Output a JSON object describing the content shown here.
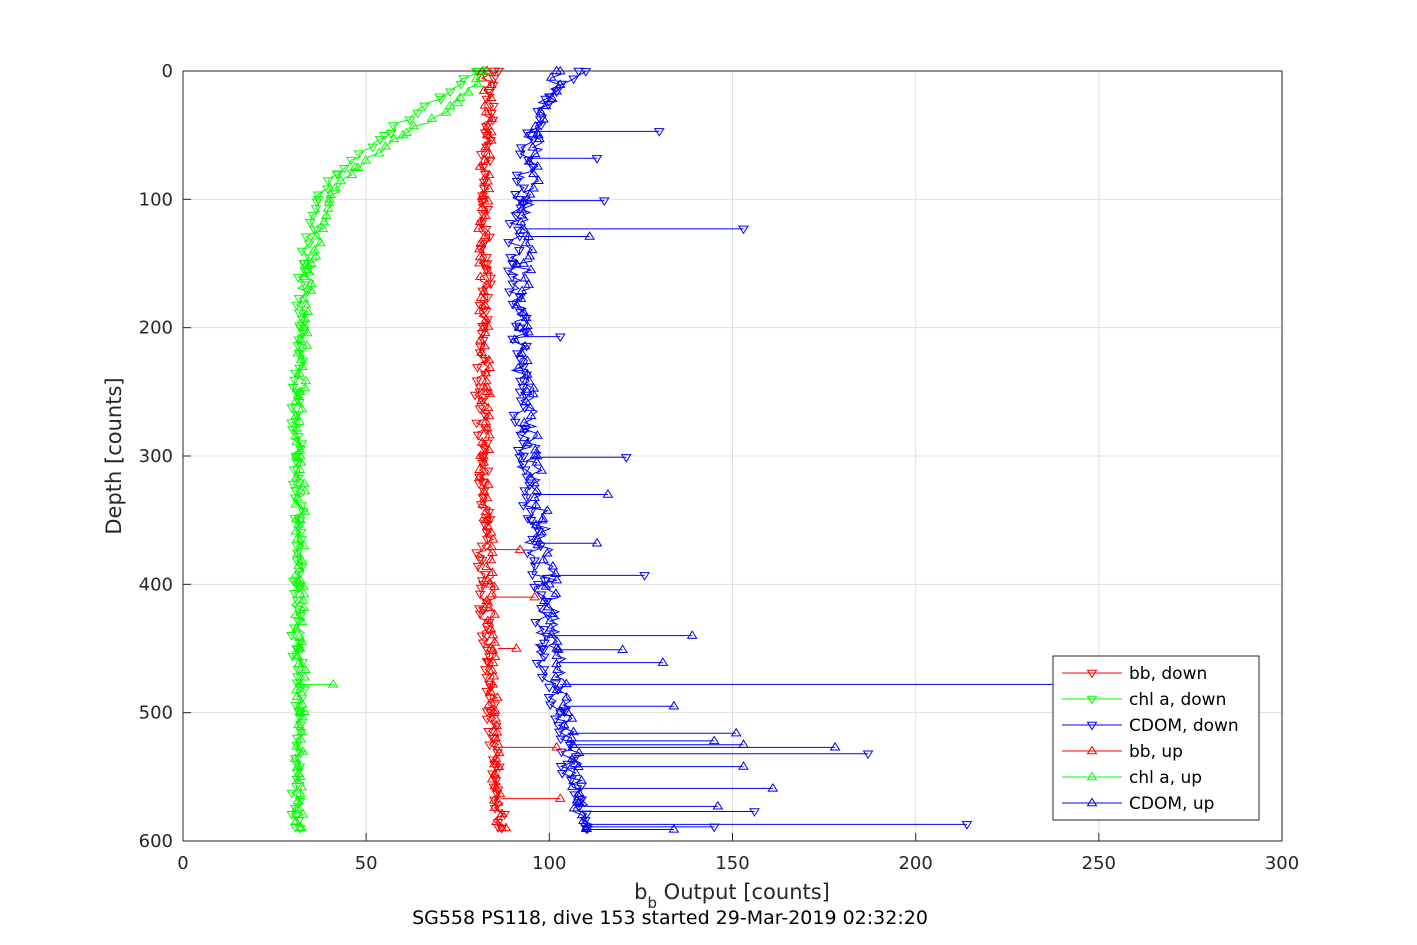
{
  "chart_data": {
    "type": "scatter",
    "caption": "SG558 PS118, dive 153 started 29-Mar-2019 02:32:20",
    "xlabel_main": "b",
    "xlabel_sub": "b",
    "xlabel_rest": " Output [counts]",
    "ylabel": "Depth [counts]",
    "xlim": [
      0,
      300
    ],
    "ylim": [
      600,
      0
    ],
    "y_reversed": true,
    "grid": true,
    "legend_position": "bottom-right",
    "x_ticks": [
      0,
      50,
      100,
      150,
      200,
      250,
      300
    ],
    "y_ticks": [
      0,
      100,
      200,
      300,
      400,
      500,
      600
    ],
    "x_tick_labels": [
      "0",
      "50",
      "100",
      "150",
      "200",
      "250",
      "300"
    ],
    "y_tick_labels": [
      "0",
      "100",
      "200",
      "300",
      "400",
      "500",
      "600"
    ],
    "series": [
      {
        "name": "bb, down",
        "color": "#ff0000",
        "marker": "triangle-down",
        "x": [
          85,
          83,
          82,
          83,
          82,
          81,
          82,
          82,
          83,
          81,
          82,
          82,
          83,
          83,
          84,
          84,
          85,
          85,
          86,
          87
        ],
        "y": [
          0,
          50,
          100,
          150,
          200,
          250,
          300,
          320,
          350,
          380,
          400,
          420,
          440,
          460,
          480,
          500,
          520,
          540,
          560,
          590
        ]
      },
      {
        "name": "chl a, down",
        "color": "#00ff00",
        "marker": "triangle-down",
        "x": [
          80,
          70,
          55,
          42,
          37,
          33,
          32,
          31,
          31,
          32,
          31,
          31,
          32,
          32,
          31,
          31,
          32
        ],
        "y": [
          0,
          20,
          50,
          80,
          100,
          150,
          200,
          250,
          300,
          350,
          400,
          450,
          480,
          500,
          540,
          580,
          590
        ]
      },
      {
        "name": "CDOM, down",
        "color": "#0000ff",
        "marker": "triangle-down",
        "x": [
          108,
          100,
          95,
          92,
          90,
          92,
          92,
          93,
          95,
          97,
          98,
          100,
          103,
          105,
          108,
          110
        ],
        "y": [
          0,
          20,
          50,
          100,
          150,
          200,
          250,
          300,
          350,
          400,
          450,
          480,
          500,
          540,
          570,
          590
        ]
      },
      {
        "name": "bb, up",
        "color": "#ff0000",
        "marker": "triangle-up",
        "x": [
          83,
          83,
          82,
          82,
          83,
          82,
          83,
          84,
          84,
          85,
          85,
          86,
          87
        ],
        "y": [
          0,
          50,
          100,
          200,
          250,
          300,
          350,
          400,
          450,
          500,
          540,
          570,
          590
        ]
      },
      {
        "name": "chl a, up",
        "color": "#00ff00",
        "marker": "triangle-up",
        "x": [
          82,
          75,
          60,
          47,
          40,
          35,
          33,
          32,
          32,
          32,
          32,
          32,
          32,
          32,
          32
        ],
        "y": [
          0,
          25,
          50,
          75,
          100,
          150,
          200,
          250,
          300,
          350,
          400,
          450,
          500,
          550,
          590
        ]
      },
      {
        "name": "CDOM, up",
        "color": "#0000ff",
        "marker": "triangle-up",
        "x": [
          102,
          97,
          94,
          93,
          92,
          94,
          96,
          98,
          100,
          102,
          105,
          107,
          108,
          110
        ],
        "y": [
          0,
          50,
          100,
          150,
          200,
          250,
          300,
          350,
          400,
          450,
          500,
          540,
          570,
          590
        ]
      }
    ],
    "spikes": [
      {
        "series": "CDOM, down",
        "x_base": 95,
        "x": 130,
        "y": 47
      },
      {
        "series": "CDOM, down",
        "x_base": 94,
        "x": 113,
        "y": 68
      },
      {
        "series": "CDOM, down",
        "x_base": 92,
        "x": 115,
        "y": 101
      },
      {
        "series": "CDOM, down",
        "x_base": 92,
        "x": 153,
        "y": 123
      },
      {
        "series": "CDOM, up",
        "x_base": 92,
        "x": 111,
        "y": 129
      },
      {
        "series": "CDOM, down",
        "x_base": 93,
        "x": 103,
        "y": 207
      },
      {
        "series": "CDOM, down",
        "x_base": 95,
        "x": 121,
        "y": 301
      },
      {
        "series": "CDOM, up",
        "x_base": 96,
        "x": 116,
        "y": 330
      },
      {
        "series": "CDOM, up",
        "x_base": 97,
        "x": 113,
        "y": 368
      },
      {
        "series": "CDOM, down",
        "x_base": 98,
        "x": 126,
        "y": 393
      },
      {
        "series": "CDOM, up",
        "x_base": 100,
        "x": 139,
        "y": 440
      },
      {
        "series": "CDOM, up",
        "x_base": 101,
        "x": 120,
        "y": 451
      },
      {
        "series": "CDOM, up",
        "x_base": 102,
        "x": 131,
        "y": 461
      },
      {
        "series": "CDOM, down",
        "x_base": 103,
        "x": 250,
        "y": 478
      },
      {
        "series": "chl a, up",
        "x_base": 32,
        "x": 41,
        "y": 478
      },
      {
        "series": "CDOM, up",
        "x_base": 104,
        "x": 134,
        "y": 495
      },
      {
        "series": "CDOM, up",
        "x_base": 105,
        "x": 151,
        "y": 516
      },
      {
        "series": "CDOM, up",
        "x_base": 105,
        "x": 145,
        "y": 522
      },
      {
        "series": "CDOM, up",
        "x_base": 105,
        "x": 153,
        "y": 525
      },
      {
        "series": "CDOM, up",
        "x_base": 106,
        "x": 178,
        "y": 527
      },
      {
        "series": "CDOM, down",
        "x_base": 106,
        "x": 187,
        "y": 532
      },
      {
        "series": "CDOM, up",
        "x_base": 106,
        "x": 153,
        "y": 542
      },
      {
        "series": "CDOM, up",
        "x_base": 107,
        "x": 161,
        "y": 559
      },
      {
        "series": "CDOM, up",
        "x_base": 107,
        "x": 146,
        "y": 573
      },
      {
        "series": "CDOM, down",
        "x_base": 108,
        "x": 156,
        "y": 577
      },
      {
        "series": "CDOM, down",
        "x_base": 110,
        "x": 214,
        "y": 587
      },
      {
        "series": "CDOM, down",
        "x_base": 109,
        "x": 145,
        "y": 589
      },
      {
        "series": "CDOM, up",
        "x_base": 109,
        "x": 134,
        "y": 591
      },
      {
        "series": "bb, up",
        "x_base": 84,
        "x": 92,
        "y": 373
      },
      {
        "series": "bb, up",
        "x_base": 85,
        "x": 96,
        "y": 410
      },
      {
        "series": "bb, up",
        "x_base": 86,
        "x": 91,
        "y": 450
      },
      {
        "series": "bb, up",
        "x_base": 86,
        "x": 102,
        "y": 527
      },
      {
        "series": "bb, up",
        "x_base": 87,
        "x": 103,
        "y": 567
      }
    ]
  },
  "legend": {
    "items": [
      {
        "label": "bb, down",
        "color": "#ff0000",
        "marker": "down"
      },
      {
        "label": "chl a, down",
        "color": "#00ff00",
        "marker": "down"
      },
      {
        "label": "CDOM, down",
        "color": "#0000ff",
        "marker": "down"
      },
      {
        "label": "bb, up",
        "color": "#ff0000",
        "marker": "up"
      },
      {
        "label": "chl a, up",
        "color": "#00ff00",
        "marker": "up"
      },
      {
        "label": "CDOM, up",
        "color": "#0000ff",
        "marker": "up"
      }
    ]
  }
}
